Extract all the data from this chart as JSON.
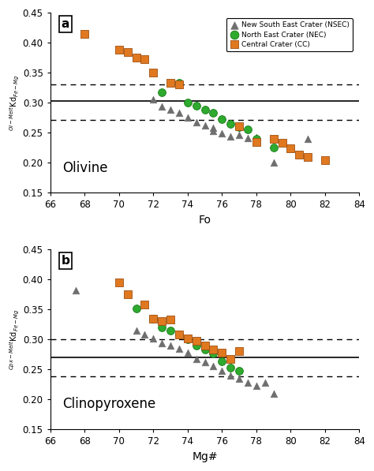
{
  "panel_a": {
    "label": "a",
    "mineral": "Olivine",
    "xlabel": "Fo",
    "hline_solid": 0.303,
    "hline_dashed_upper": 0.33,
    "hline_dashed_lower": 0.272,
    "ylim": [
      0.15,
      0.45
    ],
    "xlim": [
      66,
      84
    ],
    "NSEC_x": [
      72.0,
      72.5,
      73.0,
      73.5,
      74.0,
      74.5,
      75.0,
      75.5,
      75.5,
      76.0,
      76.5,
      77.0,
      77.5,
      78.0,
      79.0,
      81.0
    ],
    "NSEC_y": [
      0.305,
      0.294,
      0.289,
      0.283,
      0.275,
      0.268,
      0.262,
      0.258,
      0.253,
      0.249,
      0.244,
      0.246,
      0.241,
      0.243,
      0.2,
      0.24
    ],
    "NEC_x": [
      72.5,
      73.5,
      74.0,
      74.5,
      75.0,
      75.5,
      76.0,
      76.5,
      77.0,
      77.5,
      78.0,
      79.0
    ],
    "NEC_y": [
      0.318,
      0.333,
      0.3,
      0.295,
      0.288,
      0.283,
      0.273,
      0.265,
      0.26,
      0.256,
      0.24,
      0.225
    ],
    "CC_x": [
      68.0,
      70.0,
      70.5,
      71.0,
      71.5,
      72.0,
      73.0,
      73.5,
      77.0,
      78.0,
      79.0,
      79.5,
      80.0,
      80.5,
      81.0,
      82.0
    ],
    "CC_y": [
      0.415,
      0.388,
      0.385,
      0.375,
      0.372,
      0.35,
      0.333,
      0.33,
      0.261,
      0.235,
      0.24,
      0.233,
      0.224,
      0.213,
      0.21,
      0.205
    ]
  },
  "panel_b": {
    "label": "b",
    "mineral": "Clinopyroxene",
    "xlabel": "Mg#",
    "hline_solid": 0.27,
    "hline_dashed_upper": 0.3,
    "hline_dashed_lower": 0.238,
    "ylim": [
      0.15,
      0.45
    ],
    "xlim": [
      66,
      84
    ],
    "NSEC_x": [
      67.5,
      71.0,
      71.5,
      72.0,
      72.5,
      73.0,
      73.5,
      74.0,
      74.5,
      75.0,
      75.5,
      76.0,
      76.5,
      77.0,
      77.5,
      78.0,
      78.5,
      79.0
    ],
    "NSEC_y": [
      0.382,
      0.315,
      0.308,
      0.302,
      0.294,
      0.29,
      0.285,
      0.278,
      0.268,
      0.262,
      0.256,
      0.248,
      0.24,
      0.234,
      0.228,
      0.223,
      0.228,
      0.21
    ],
    "NEC_x": [
      71.0,
      72.0,
      72.5,
      73.0,
      73.5,
      74.0,
      74.5,
      75.0,
      75.5,
      76.0,
      76.5,
      77.0
    ],
    "NEC_y": [
      0.352,
      0.335,
      0.32,
      0.314,
      0.308,
      0.3,
      0.29,
      0.283,
      0.276,
      0.263,
      0.253,
      0.247
    ],
    "CC_x": [
      70.0,
      70.5,
      71.5,
      72.0,
      72.5,
      73.0,
      73.5,
      74.0,
      74.5,
      75.0,
      75.5,
      76.0,
      76.5,
      77.0
    ],
    "CC_y": [
      0.395,
      0.375,
      0.358,
      0.335,
      0.33,
      0.333,
      0.308,
      0.302,
      0.297,
      0.29,
      0.283,
      0.278,
      0.268,
      0.28
    ]
  },
  "colors": {
    "NSEC": "#6e6e6e",
    "NEC": "#2eaa2e",
    "CC": "#e07820"
  },
  "legend_labels": [
    "New South East Crater (NSEC)",
    "North East Crater (NEC)",
    "Central Crater (CC)"
  ],
  "ylabel_a": "$^{Ol-Melt}$Kd$_{Fe-Mg}$",
  "ylabel_b": "$^{Cpx-Melt}$Kd$_{Fe-Mg}$"
}
